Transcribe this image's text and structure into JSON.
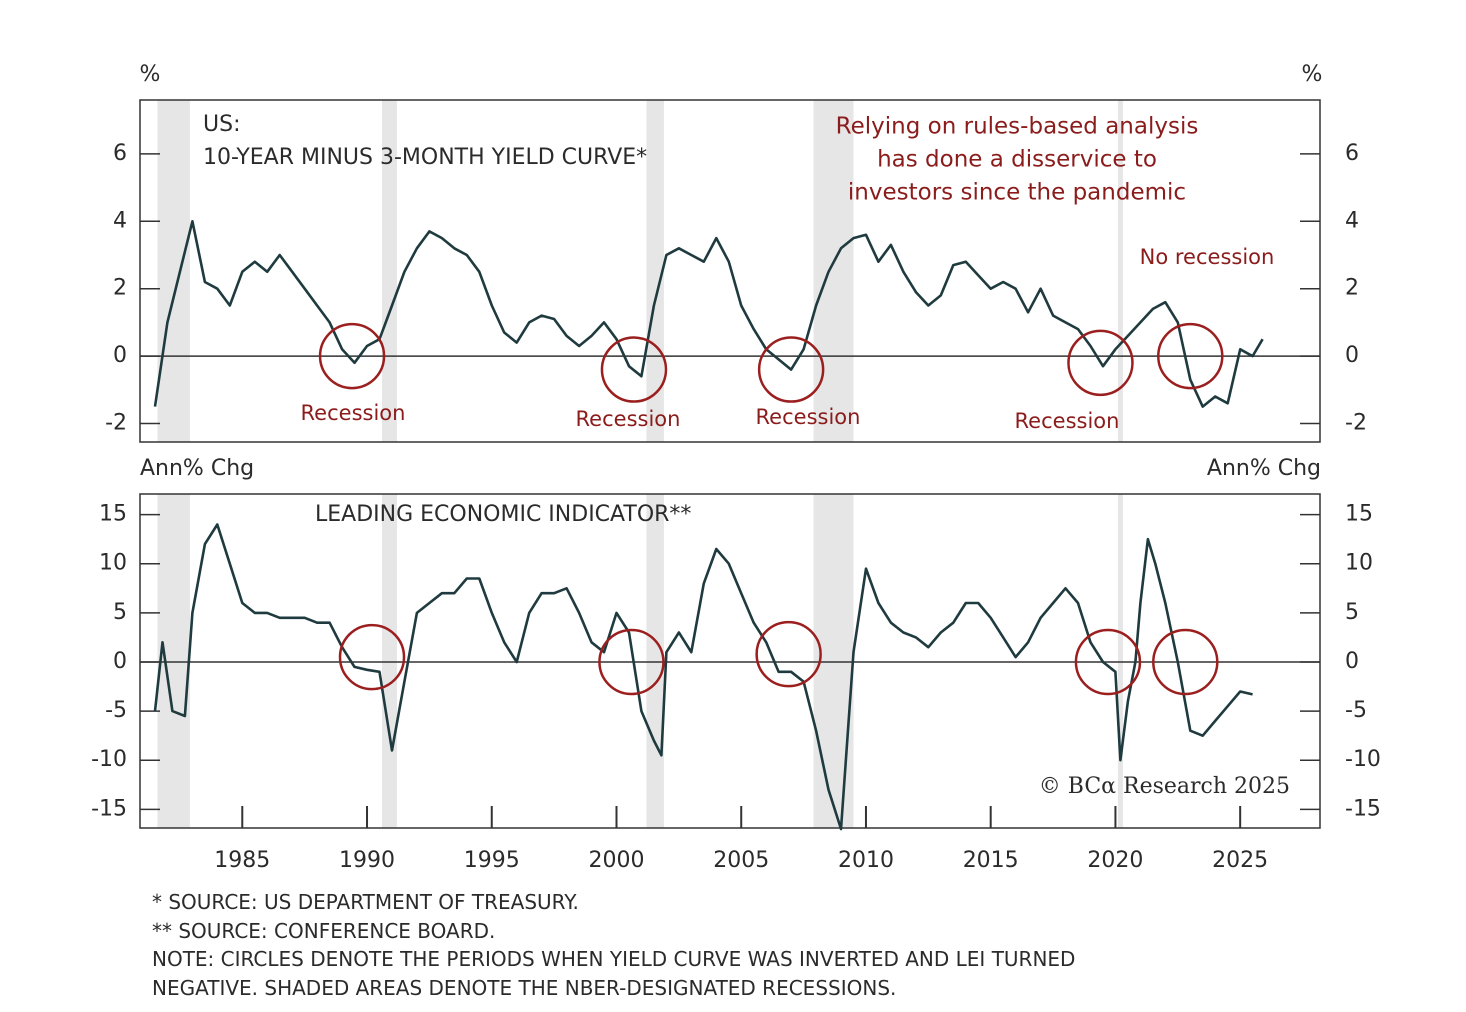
{
  "chart_data": [
    {
      "type": "line",
      "title_lines": [
        "US:",
        "10-YEAR MINUS 3-MONTH YIELD CURVE*"
      ],
      "y_unit_left": "%",
      "y_unit_right": "%",
      "annotation_lines": [
        "Relying on rules-based analysis",
        "has done a disservice to",
        "investors since the pandemic"
      ],
      "labels": [
        "Recession",
        "Recession",
        "Recession",
        "Recession",
        "No recession"
      ],
      "xlim": [
        1980.9,
        2028.2
      ],
      "ylim": [
        -2.55,
        7.6
      ],
      "yticks": [
        -2,
        0,
        2,
        4,
        6
      ],
      "shaded_periods": [
        [
          1981.6,
          1982.9
        ],
        [
          1990.6,
          1991.2
        ],
        [
          2001.2,
          2001.9
        ],
        [
          2007.9,
          2009.5
        ],
        [
          2020.1,
          2020.3
        ]
      ],
      "circles": {
        "x": [
          1989.4,
          2000.7,
          2007.0,
          2019.4,
          2023.0
        ],
        "y": [
          0,
          -0.4,
          -0.4,
          -0.2,
          0
        ]
      },
      "series": [
        {
          "color": "#1f3b3f",
          "x": [
            1981.5,
            1982,
            1982.5,
            1983,
            1983.5,
            1984,
            1984.5,
            1985,
            1985.5,
            1986,
            1986.5,
            1987,
            1987.5,
            1988,
            1988.5,
            1989,
            1989.5,
            1990,
            1990.5,
            1991,
            1991.5,
            1992,
            1992.5,
            1993,
            1993.5,
            1994,
            1994.5,
            1995,
            1995.5,
            1996,
            1996.5,
            1997,
            1997.5,
            1998,
            1998.5,
            1999,
            1999.5,
            2000,
            2000.5,
            2001,
            2001.5,
            2002,
            2002.5,
            2003,
            2003.5,
            2004,
            2004.5,
            2005,
            2005.5,
            2006,
            2006.5,
            2007,
            2007.5,
            2008,
            2008.5,
            2009,
            2009.5,
            2010,
            2010.5,
            2011,
            2011.5,
            2012,
            2012.5,
            2013,
            2013.5,
            2014,
            2014.5,
            2015,
            2015.5,
            2016,
            2016.5,
            2017,
            2017.5,
            2018,
            2018.5,
            2019,
            2019.5,
            2020,
            2020.5,
            2021,
            2021.5,
            2022,
            2022.5,
            2023,
            2023.5,
            2024,
            2024.5,
            2025,
            2025.5,
            2025.9
          ],
          "values": [
            -1.5,
            1.0,
            2.5,
            4.0,
            2.2,
            2.0,
            1.5,
            2.5,
            2.8,
            2.5,
            3.0,
            2.5,
            2.0,
            1.5,
            1.0,
            0.2,
            -0.2,
            0.3,
            0.5,
            1.5,
            2.5,
            3.2,
            3.7,
            3.5,
            3.2,
            3.0,
            2.5,
            1.5,
            0.7,
            0.4,
            1.0,
            1.2,
            1.1,
            0.6,
            0.3,
            0.6,
            1.0,
            0.5,
            -0.3,
            -0.6,
            1.5,
            3.0,
            3.2,
            3.0,
            2.8,
            3.5,
            2.8,
            1.5,
            0.8,
            0.2,
            -0.1,
            -0.4,
            0.2,
            1.5,
            2.5,
            3.2,
            3.5,
            3.6,
            2.8,
            3.3,
            2.5,
            1.9,
            1.5,
            1.8,
            2.7,
            2.8,
            2.4,
            2.0,
            2.2,
            2.0,
            1.3,
            2.0,
            1.2,
            1.0,
            0.8,
            0.3,
            -0.3,
            0.2,
            0.6,
            1.0,
            1.4,
            1.6,
            1.0,
            -0.7,
            -1.5,
            -1.2,
            -1.4,
            0.2,
            0.0,
            0.5
          ]
        }
      ]
    },
    {
      "type": "line",
      "title": "LEADING ECONOMIC INDICATOR**",
      "y_unit_left": "Ann% Chg",
      "y_unit_right": "Ann% Chg",
      "credit": "© BCα Research 2025",
      "xlim": [
        1980.9,
        2028.2
      ],
      "ylim": [
        -16.9,
        17.1
      ],
      "yticks": [
        -15,
        -10,
        -5,
        0,
        5,
        10,
        15
      ],
      "xticks": [
        1985,
        1990,
        1995,
        2000,
        2005,
        2010,
        2015,
        2020,
        2025
      ],
      "shaded_periods": [
        [
          1981.6,
          1982.9
        ],
        [
          1990.6,
          1991.2
        ],
        [
          2001.2,
          2001.9
        ],
        [
          2007.9,
          2009.5
        ],
        [
          2020.1,
          2020.3
        ]
      ],
      "circles": {
        "x": [
          1990.2,
          2000.6,
          2006.9,
          2019.7,
          2022.8
        ],
        "y": [
          0.5,
          0,
          0.8,
          0,
          0
        ]
      },
      "series": [
        {
          "color": "#1f3b3f",
          "x": [
            1981.5,
            1981.8,
            1982.2,
            1982.7,
            1983,
            1983.5,
            1984,
            1984.5,
            1985,
            1985.5,
            1986,
            1986.5,
            1987,
            1987.5,
            1988,
            1988.5,
            1989,
            1989.5,
            1990,
            1990.5,
            1991,
            1991.5,
            1992,
            1992.5,
            1993,
            1993.5,
            1994,
            1994.5,
            1995,
            1995.5,
            1996,
            1996.5,
            1997,
            1997.5,
            1998,
            1998.5,
            1999,
            1999.5,
            2000,
            2000.5,
            2001,
            2001.5,
            2001.8,
            2002,
            2002.5,
            2003,
            2003.5,
            2004,
            2004.5,
            2005,
            2005.5,
            2006,
            2006.5,
            2007,
            2007.5,
            2008,
            2008.5,
            2009,
            2009.5,
            2010,
            2010.5,
            2011,
            2011.5,
            2012,
            2012.5,
            2013,
            2013.5,
            2014,
            2014.5,
            2015,
            2015.5,
            2016,
            2016.5,
            2017,
            2017.5,
            2018,
            2018.5,
            2019,
            2019.5,
            2020,
            2020.2,
            2020.5,
            2020.8,
            2021,
            2021.3,
            2021.6,
            2022,
            2022.5,
            2023,
            2023.5,
            2024,
            2024.5,
            2025,
            2025.5
          ],
          "values": [
            -5,
            2,
            -5,
            -5.5,
            5,
            12,
            14,
            10,
            6,
            5,
            5,
            4.5,
            4.5,
            4.5,
            4,
            4,
            1.5,
            -0.5,
            -0.8,
            -1,
            -9,
            -2,
            5,
            6,
            7,
            7,
            8.5,
            8.5,
            5,
            2,
            0,
            5,
            7,
            7,
            7.5,
            5,
            2,
            1,
            5,
            3,
            -5,
            -8,
            -9.5,
            1,
            3,
            1,
            8,
            11.5,
            10,
            7,
            4,
            2,
            -1,
            -1,
            -2,
            -7,
            -13,
            -17,
            1,
            9.5,
            6,
            4,
            3,
            2.5,
            1.5,
            3,
            4,
            6,
            6,
            4.5,
            2.5,
            0.5,
            2,
            4.5,
            6,
            7.5,
            6,
            2,
            0,
            -1,
            -10,
            -4,
            0,
            6,
            12.5,
            10,
            6,
            0,
            -7,
            -7.5,
            -6,
            -4.5,
            -3,
            -3.3
          ]
        }
      ]
    }
  ],
  "footnotes": [
    "* SOURCE: US DEPARTMENT OF TREASURY.",
    "** SOURCE: CONFERENCE BOARD.",
    "NOTE: CIRCLES DENOTE THE PERIODS WHEN YIELD CURVE WAS INVERTED AND LEI TURNED",
    "NEGATIVE. SHADED AREAS DENOTE THE NBER-DESIGNATED RECESSIONS."
  ]
}
